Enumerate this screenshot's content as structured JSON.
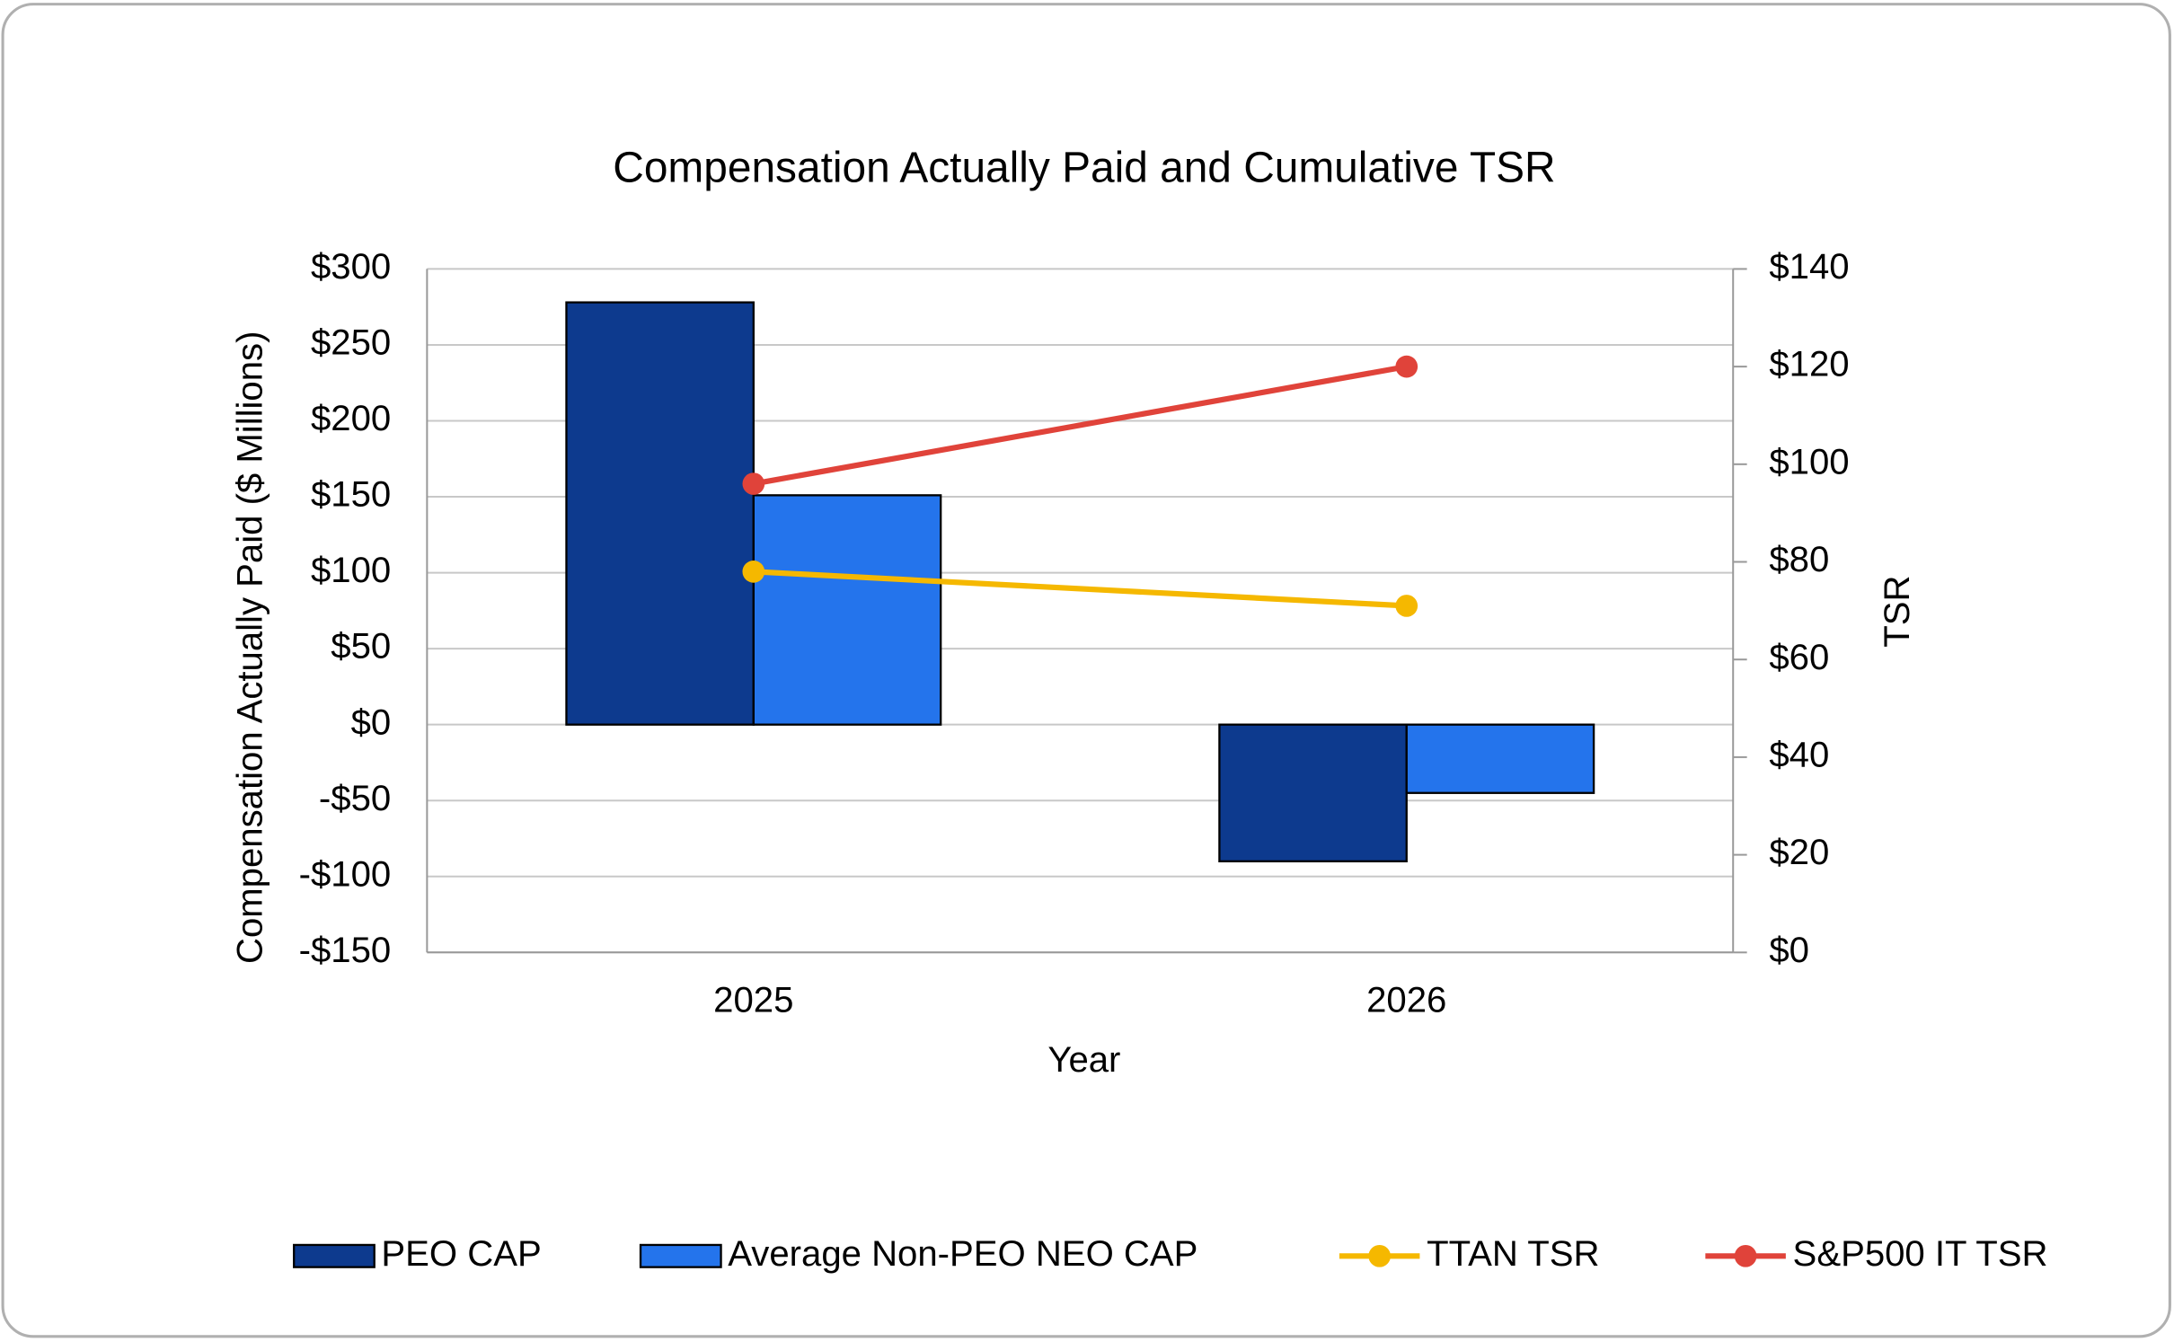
{
  "chart_data": {
    "type": "bar",
    "title": "Compensation Actually Paid and Cumulative TSR",
    "x_label": "Year",
    "y_label": "Compensation Actually Paid ($ Millions)",
    "y2_label": "TSR",
    "categories": [
      "2025",
      "2026"
    ],
    "series": [
      {
        "name": "PEO CAP",
        "type": "bar",
        "color": "#0d3a8e",
        "values": [
          278,
          -90
        ]
      },
      {
        "name": "Average Non-PEO NEO CAP",
        "type": "bar",
        "color": "#2474ec",
        "values": [
          151,
          -45
        ]
      },
      {
        "name": "TTAN TSR",
        "type": "line",
        "axis": "y2",
        "color": "#f5b800",
        "values": [
          78,
          71
        ]
      },
      {
        "name": "S&P500 IT TSR",
        "type": "line",
        "axis": "y2",
        "color": "#e0433a",
        "values": [
          96,
          120
        ]
      }
    ],
    "ylim": [
      -150,
      300
    ],
    "yticks": [
      {
        "value": -150,
        "label": "-$150"
      },
      {
        "value": -100,
        "label": "-$100"
      },
      {
        "value": -50,
        "label": "-$50"
      },
      {
        "value": 0,
        "label": "$0"
      },
      {
        "value": 50,
        "label": "$50"
      },
      {
        "value": 100,
        "label": "$100"
      },
      {
        "value": 150,
        "label": "$150"
      },
      {
        "value": 200,
        "label": "$200"
      },
      {
        "value": 250,
        "label": "$250"
      },
      {
        "value": 300,
        "label": "$300"
      }
    ],
    "y2lim": [
      0,
      140
    ],
    "y2ticks": [
      {
        "value": 0,
        "label": "$0"
      },
      {
        "value": 20,
        "label": "$20"
      },
      {
        "value": 40,
        "label": "$40"
      },
      {
        "value": 60,
        "label": "$60"
      },
      {
        "value": 80,
        "label": "$80"
      },
      {
        "value": 100,
        "label": "$100"
      },
      {
        "value": 120,
        "label": "$120"
      },
      {
        "value": 140,
        "label": "$140"
      }
    ],
    "grid": true,
    "legend": "bottom"
  }
}
